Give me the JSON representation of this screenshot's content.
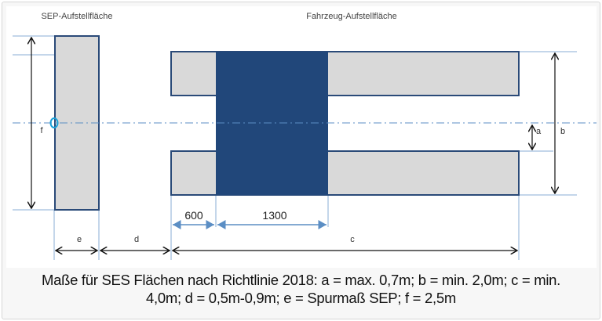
{
  "diagram": {
    "title_sep": "SEP-Aufstellfläche",
    "title_vehicle": "Fahrzeug-Aufstellfläche",
    "labels": {
      "a": "a",
      "b": "b",
      "c": "c",
      "d": "d",
      "e": "e",
      "f": "f"
    },
    "dim_600": "600",
    "dim_1300": "1300",
    "colors": {
      "block": "#21477a",
      "bar_fill": "#d9d9d9",
      "outline": "#2a4a78",
      "dim_blue": "#5b8ec4",
      "axis": "#5b8ec4"
    }
  },
  "caption": {
    "line1": "Maße für SES Flächen nach Richtlinie 2018: a = max. 0,7m; b = min. 2,0m; c = min.",
    "line2": "4,0m; d = 0,5m-0,9m; e = Spurmaß SEP; f = 2,5m"
  }
}
